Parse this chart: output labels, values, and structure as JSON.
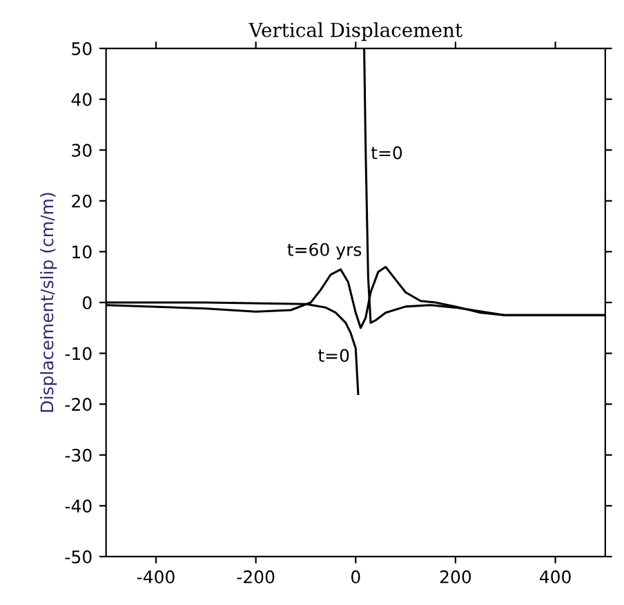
{
  "chart_data": {
    "type": "line",
    "title": "Vertical Displacement",
    "ylabel": "Displacement/slip (cm/m)",
    "xlim": [
      -500,
      500
    ],
    "ylim": [
      -50,
      50
    ],
    "xticks": [
      -400,
      -200,
      0,
      200,
      400
    ],
    "yticks": [
      -50,
      -40,
      -30,
      -20,
      -10,
      0,
      10,
      20,
      30,
      40,
      50
    ],
    "grid": false,
    "legend": false,
    "marker": "none",
    "line_style": "solid",
    "series": [
      {
        "color": "#000000",
        "x": [
          -500,
          -300,
          -100,
          -60,
          -40,
          -20,
          -10,
          0,
          5,
          10,
          17,
          20,
          25,
          30,
          40,
          60,
          100,
          150,
          200,
          300,
          400,
          500
        ],
        "values": [
          0,
          0,
          -0.3,
          -1,
          -2,
          -4,
          -6,
          -9,
          -18,
          null,
          50,
          30,
          5,
          -4,
          -3.5,
          -2,
          -0.8,
          -0.5,
          -1,
          -2.5,
          -2.5,
          -2.5
        ]
      },
      {
        "color": "#000000",
        "x": [
          -500,
          -300,
          -200,
          -130,
          -90,
          -70,
          -50,
          -30,
          -15,
          0,
          10,
          20,
          30,
          45,
          60,
          80,
          100,
          130,
          160,
          200,
          250,
          300,
          400,
          500
        ],
        "values": [
          -0.5,
          -1.2,
          -1.8,
          -1.5,
          0,
          2.5,
          5.5,
          6.5,
          4,
          -2,
          -5,
          -3,
          2,
          6,
          7,
          4.5,
          2,
          0.3,
          0,
          -0.8,
          -2,
          -2.5,
          -2.5,
          -2.5
        ]
      }
    ],
    "annotations": [
      "t=0",
      "t=60 yrs",
      "t=0"
    ]
  }
}
